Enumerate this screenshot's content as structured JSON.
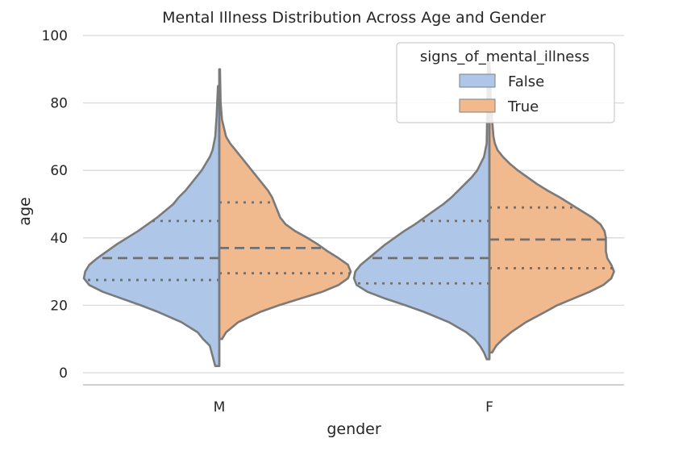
{
  "chart_data": {
    "type": "violin",
    "title": "Mental Illness Distribution Across Age and Gender",
    "xlabel": "gender",
    "ylabel": "age",
    "categories": [
      "M",
      "F"
    ],
    "ylim": [
      0,
      100
    ],
    "yticks": [
      0,
      20,
      40,
      60,
      80,
      100
    ],
    "grid": true,
    "split": true,
    "legend": {
      "title": "signs_of_mental_illness",
      "placement": "top-right",
      "entries": [
        "False",
        "True"
      ]
    },
    "series": [
      {
        "name": "False",
        "color": "#aec7e8",
        "groups": [
          {
            "category": "M",
            "q1": 27.5,
            "median": 34,
            "q3": 45,
            "density": [
              [
                2,
                0.03
              ],
              [
                5,
                0.05
              ],
              [
                8,
                0.07
              ],
              [
                10,
                0.12
              ],
              [
                12,
                0.16
              ],
              [
                15,
                0.28
              ],
              [
                18,
                0.45
              ],
              [
                20,
                0.58
              ],
              [
                22,
                0.72
              ],
              [
                24,
                0.86
              ],
              [
                26,
                0.96
              ],
              [
                28,
                1.0
              ],
              [
                30,
                0.99
              ],
              [
                32,
                0.96
              ],
              [
                34,
                0.9
              ],
              [
                36,
                0.83
              ],
              [
                38,
                0.76
              ],
              [
                40,
                0.68
              ],
              [
                42,
                0.6
              ],
              [
                44,
                0.53
              ],
              [
                46,
                0.46
              ],
              [
                48,
                0.4
              ],
              [
                50,
                0.34
              ],
              [
                52,
                0.3
              ],
              [
                54,
                0.25
              ],
              [
                56,
                0.21
              ],
              [
                58,
                0.17
              ],
              [
                60,
                0.13
              ],
              [
                62,
                0.1
              ],
              [
                64,
                0.07
              ],
              [
                66,
                0.05
              ],
              [
                70,
                0.03
              ],
              [
                76,
                0.02
              ],
              [
                85,
                0.01
              ]
            ]
          },
          {
            "category": "F",
            "q1": 26.5,
            "median": 34,
            "q3": 45,
            "density": [
              [
                4,
                0.02
              ],
              [
                6,
                0.04
              ],
              [
                8,
                0.07
              ],
              [
                10,
                0.11
              ],
              [
                12,
                0.17
              ],
              [
                15,
                0.3
              ],
              [
                18,
                0.48
              ],
              [
                20,
                0.62
              ],
              [
                22,
                0.77
              ],
              [
                24,
                0.9
              ],
              [
                26,
                0.98
              ],
              [
                28,
                1.0
              ],
              [
                30,
                0.99
              ],
              [
                32,
                0.95
              ],
              [
                34,
                0.89
              ],
              [
                36,
                0.83
              ],
              [
                38,
                0.77
              ],
              [
                40,
                0.7
              ],
              [
                42,
                0.63
              ],
              [
                44,
                0.55
              ],
              [
                46,
                0.48
              ],
              [
                48,
                0.41
              ],
              [
                50,
                0.34
              ],
              [
                52,
                0.28
              ],
              [
                54,
                0.23
              ],
              [
                56,
                0.18
              ],
              [
                58,
                0.13
              ],
              [
                60,
                0.09
              ],
              [
                64,
                0.04
              ],
              [
                68,
                0.02
              ],
              [
                80,
                0.015
              ],
              [
                92,
                0.01
              ]
            ]
          }
        ]
      },
      {
        "name": "True",
        "color": "#f1b98e",
        "groups": [
          {
            "category": "M",
            "q1": 29.5,
            "median": 37,
            "q3": 50.5,
            "density": [
              [
                10,
                0.02
              ],
              [
                12,
                0.05
              ],
              [
                15,
                0.14
              ],
              [
                18,
                0.3
              ],
              [
                20,
                0.44
              ],
              [
                22,
                0.6
              ],
              [
                24,
                0.76
              ],
              [
                26,
                0.88
              ],
              [
                28,
                0.95
              ],
              [
                30,
                0.97
              ],
              [
                32,
                0.95
              ],
              [
                34,
                0.88
              ],
              [
                36,
                0.8
              ],
              [
                38,
                0.73
              ],
              [
                40,
                0.65
              ],
              [
                42,
                0.56
              ],
              [
                44,
                0.49
              ],
              [
                46,
                0.45
              ],
              [
                48,
                0.43
              ],
              [
                50,
                0.41
              ],
              [
                52,
                0.39
              ],
              [
                54,
                0.36
              ],
              [
                56,
                0.32
              ],
              [
                58,
                0.28
              ],
              [
                60,
                0.24
              ],
              [
                62,
                0.2
              ],
              [
                64,
                0.16
              ],
              [
                66,
                0.12
              ],
              [
                68,
                0.08
              ],
              [
                70,
                0.05
              ],
              [
                75,
                0.02
              ],
              [
                80,
                0.01
              ],
              [
                90,
                0.005
              ]
            ]
          },
          {
            "category": "F",
            "q1": 31,
            "median": 39.5,
            "q3": 49,
            "density": [
              [
                6,
                0.02
              ],
              [
                8,
                0.05
              ],
              [
                10,
                0.1
              ],
              [
                12,
                0.16
              ],
              [
                15,
                0.27
              ],
              [
                18,
                0.41
              ],
              [
                20,
                0.5
              ],
              [
                22,
                0.62
              ],
              [
                24,
                0.74
              ],
              [
                26,
                0.84
              ],
              [
                28,
                0.9
              ],
              [
                30,
                0.92
              ],
              [
                32,
                0.9
              ],
              [
                34,
                0.87
              ],
              [
                36,
                0.86
              ],
              [
                38,
                0.86
              ],
              [
                40,
                0.86
              ],
              [
                42,
                0.85
              ],
              [
                44,
                0.82
              ],
              [
                46,
                0.76
              ],
              [
                48,
                0.68
              ],
              [
                50,
                0.6
              ],
              [
                52,
                0.52
              ],
              [
                54,
                0.43
              ],
              [
                56,
                0.35
              ],
              [
                58,
                0.28
              ],
              [
                60,
                0.21
              ],
              [
                62,
                0.15
              ],
              [
                64,
                0.1
              ],
              [
                66,
                0.06
              ],
              [
                68,
                0.04
              ],
              [
                70,
                0.03
              ],
              [
                80,
                0.01
              ],
              [
                90,
                0.005
              ]
            ]
          }
        ]
      }
    ]
  }
}
